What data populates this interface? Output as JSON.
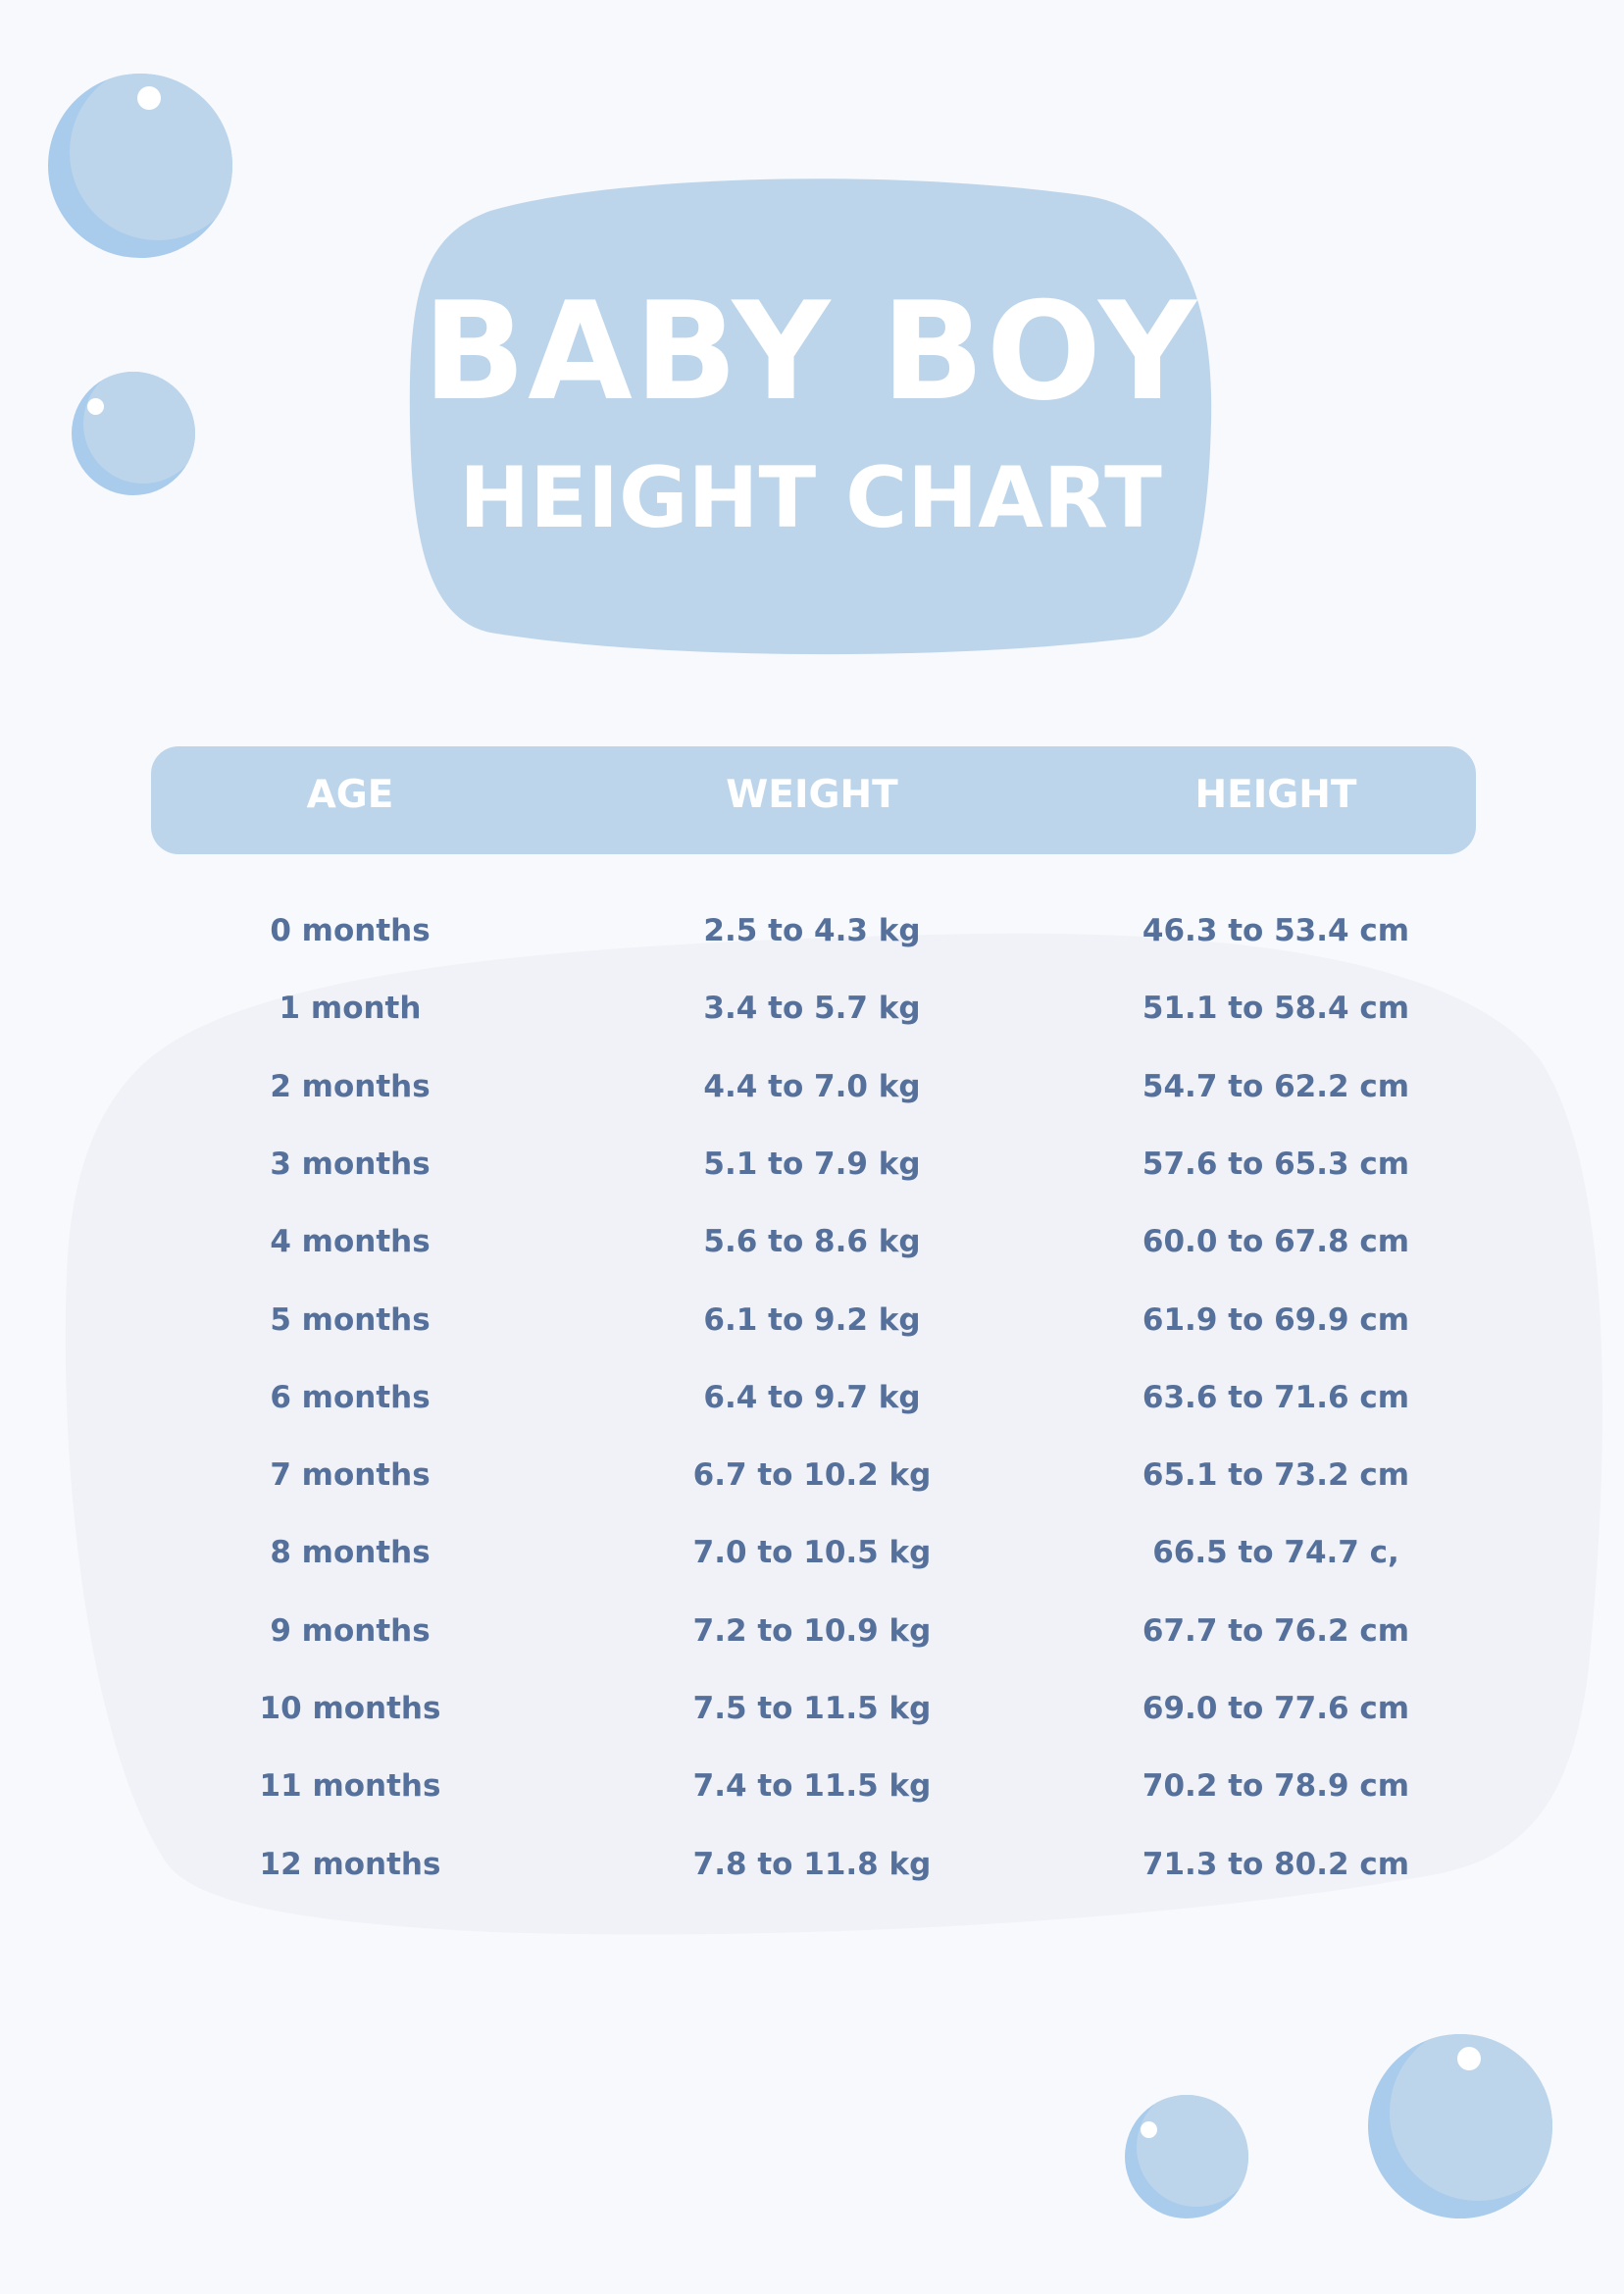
{
  "title": {
    "line1": "BABY BOY",
    "line2": "HEIGHT CHART"
  },
  "colors": {
    "background": "#f8f9fd",
    "accent": "#bdd5ea",
    "text": "#55709a",
    "panel": "#f1f2f7"
  },
  "table": {
    "headers": [
      "AGE",
      "WEIGHT",
      "HEIGHT"
    ],
    "rows": [
      [
        "0 months",
        "2.5 to 4.3 kg",
        "46.3 to 53.4 cm"
      ],
      [
        "1 month",
        "3.4 to 5.7 kg",
        "51.1 to 58.4 cm"
      ],
      [
        "2 months",
        "4.4 to 7.0 kg",
        "54.7 to 62.2 cm"
      ],
      [
        "3 months",
        "5.1 to 7.9 kg",
        "57.6 to 65.3 cm"
      ],
      [
        "4 months",
        "5.6 to 8.6 kg",
        "60.0 to 67.8 cm"
      ],
      [
        "5 months",
        "6.1 to 9.2 kg",
        "61.9 to 69.9 cm"
      ],
      [
        "6 months",
        "6.4 to 9.7 kg",
        "63.6 to 71.6 cm"
      ],
      [
        "7 months",
        "6.7 to 10.2 kg",
        "65.1 to 73.2 cm"
      ],
      [
        "8 months",
        "7.0 to 10.5 kg",
        "66.5 to 74.7 c,"
      ],
      [
        "9 months",
        "7.2 to 10.9 kg",
        "67.7 to 76.2 cm"
      ],
      [
        "10 months",
        "7.5 to 11.5 kg",
        "69.0 to 77.6 cm"
      ],
      [
        "11 months",
        "7.4 to 11.5 kg",
        "70.2 to 78.9 cm"
      ],
      [
        "12 months",
        "7.8 to 11.8 kg",
        "71.3 to 80.2 cm"
      ]
    ]
  }
}
